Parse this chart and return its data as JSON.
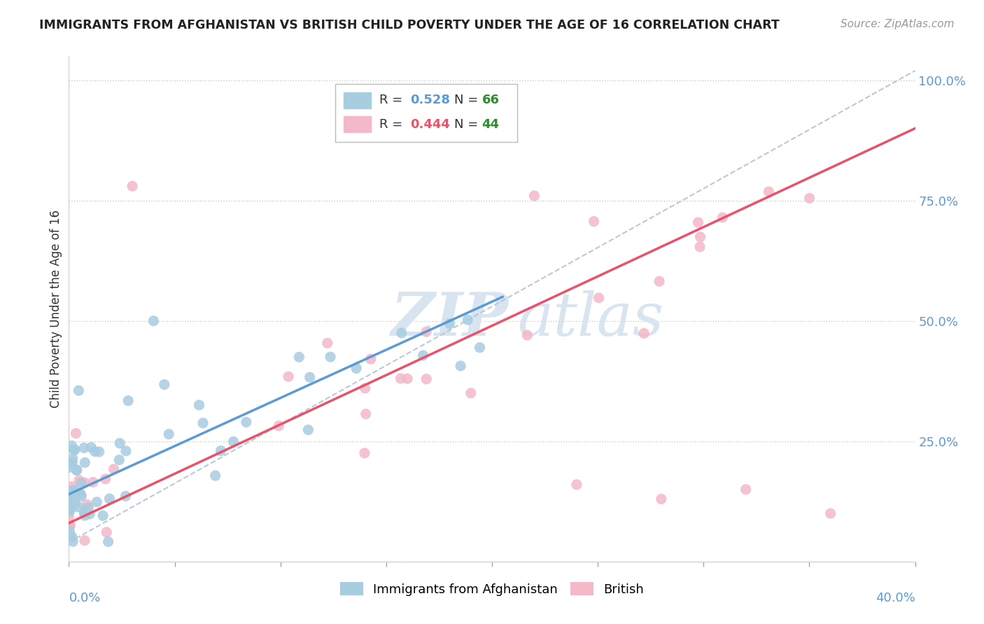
{
  "title": "IMMIGRANTS FROM AFGHANISTAN VS BRITISH CHILD POVERTY UNDER THE AGE OF 16 CORRELATION CHART",
  "source": "Source: ZipAtlas.com",
  "ylabel": "Child Poverty Under the Age of 16",
  "xlim": [
    0.0,
    0.4
  ],
  "ylim": [
    0.0,
    1.05
  ],
  "blue_color": "#a8cce0",
  "pink_color": "#f4b8c8",
  "blue_line_color": "#5b9bd5",
  "pink_line_color": "#e8526a",
  "gray_line_color": "#b0c4d8",
  "watermark_color": "#d8e4f0",
  "background_color": "#ffffff",
  "grid_color": "#c8c8c8",
  "right_axis_color": "#5b9bd5",
  "source_color": "#999999",
  "title_color": "#222222"
}
